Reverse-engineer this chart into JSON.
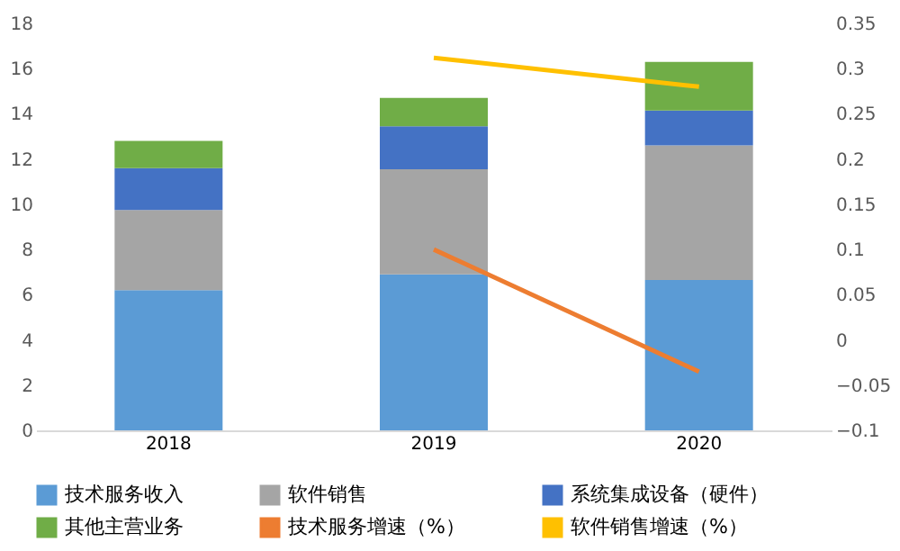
{
  "chart_data": {
    "type": "bar",
    "stacked": true,
    "categories": [
      "2018",
      "2019",
      "2020"
    ],
    "series": [
      {
        "name": "技术服务收入",
        "color": "#5b9bd5",
        "values": [
          6.2,
          6.9,
          6.65
        ]
      },
      {
        "name": "软件销售",
        "color": "#a5a5a5",
        "values": [
          3.55,
          4.65,
          5.95
        ]
      },
      {
        "name": "系统集成设备（硬件）",
        "color": "#4472c4",
        "values": [
          1.85,
          1.9,
          1.55
        ]
      },
      {
        "name": "其他主营业务",
        "color": "#70ad47",
        "values": [
          1.2,
          1.25,
          2.15
        ]
      },
      {
        "name": "技术服务增速（%）",
        "color": "#ed7d31",
        "type": "line",
        "axis": "y2",
        "values": [
          null,
          0.1,
          -0.035
        ]
      },
      {
        "name": "软件销售增速（%）",
        "color": "#ffc000",
        "type": "line",
        "axis": "y2",
        "values": [
          null,
          0.312,
          0.28
        ]
      }
    ],
    "ylim": [
      0,
      18
    ],
    "yticks": [
      0,
      2,
      4,
      6,
      8,
      10,
      12,
      14,
      16,
      18
    ],
    "y2lim": [
      -0.1,
      0.35
    ],
    "y2ticks": [
      -0.1,
      -0.05,
      0,
      0.05,
      0.1,
      0.15,
      0.2,
      0.25,
      0.3,
      0.35
    ],
    "legend": "bottom"
  }
}
